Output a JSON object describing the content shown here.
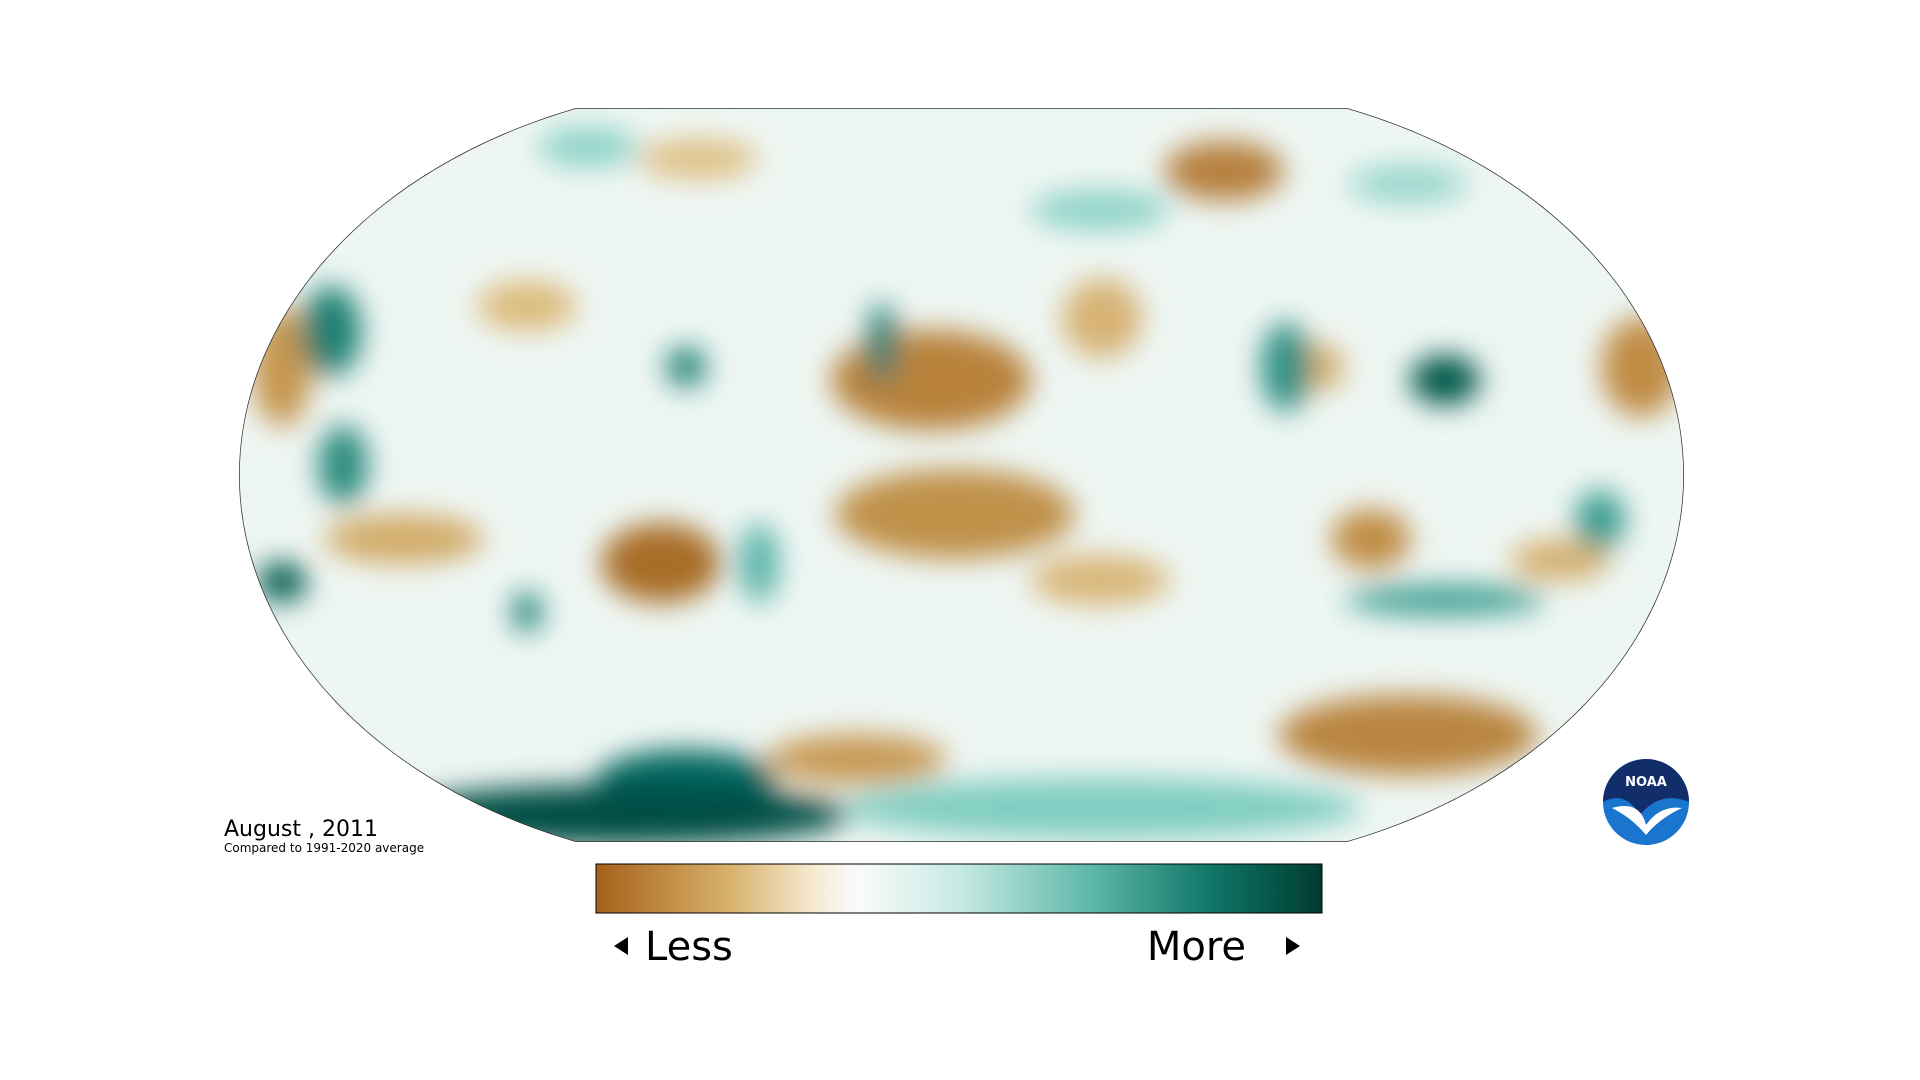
{
  "map": {
    "date": "August , 2011",
    "subtitle": "Compared to 1991-2020 average"
  },
  "legend": {
    "low": "Less",
    "high": "More"
  },
  "logo": {
    "label": "NOAA"
  }
}
